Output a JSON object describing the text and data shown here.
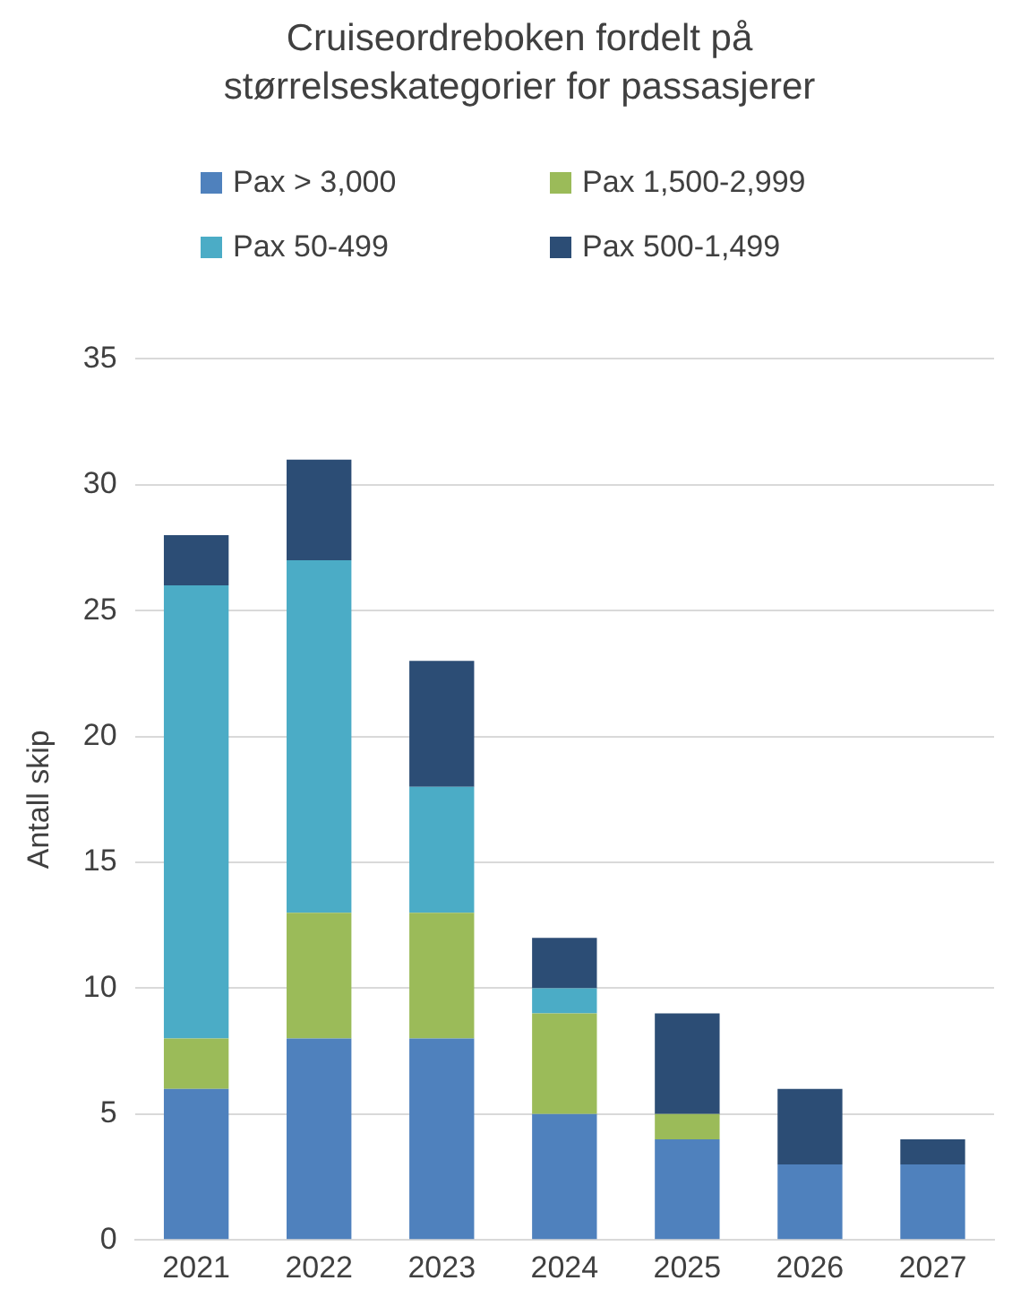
{
  "chart_data": {
    "type": "bar",
    "title": "Cruiseordreboken fordelt på størrelseskategorier for passasjerer",
    "ylabel": "Antall skip",
    "categories": [
      "2021",
      "2022",
      "2023",
      "2024",
      "2025",
      "2026",
      "2027"
    ],
    "stacked": true,
    "series": [
      {
        "name": "Pax > 3,000",
        "color": "#4f81bd",
        "values": [
          6,
          8,
          8,
          5,
          4,
          3,
          3
        ]
      },
      {
        "name": "Pax 1,500-2,999",
        "color": "#9bbb59",
        "values": [
          2,
          5,
          5,
          4,
          1,
          0,
          0
        ]
      },
      {
        "name": "Pax 50-499",
        "color": "#4bacc6",
        "values": [
          18,
          14,
          5,
          1,
          0,
          0,
          0
        ]
      },
      {
        "name": "Pax 500-1,499",
        "color": "#2c4d75",
        "values": [
          2,
          4,
          5,
          2,
          4,
          3,
          1
        ]
      }
    ],
    "ylim": [
      0,
      35
    ],
    "yticks": [
      0,
      5,
      10,
      15,
      20,
      25,
      30,
      35
    ],
    "grid": "y",
    "legend": "top"
  }
}
